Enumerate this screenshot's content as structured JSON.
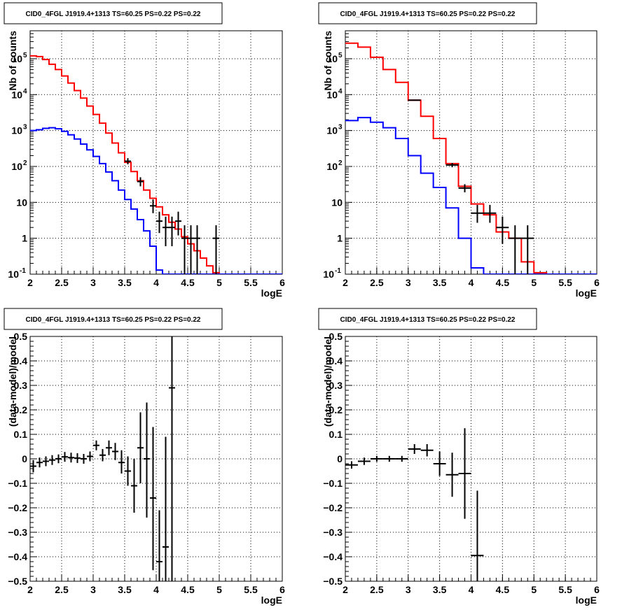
{
  "chart_data": [
    {
      "type": "line",
      "title": "CID0_4FGL J1919.4+1313 TS=60.25 PS=0.22 PS=0.22",
      "xlabel": "logE",
      "ylabel": "Nb of counts",
      "log_y": true,
      "xlim": [
        2,
        6
      ],
      "ylim": [
        0.1,
        600000
      ],
      "grid": true,
      "x_ticks": [
        "2",
        "2.5",
        "3",
        "3.5",
        "4",
        "4.5",
        "5",
        "5.5",
        "6"
      ],
      "y_ticks": [
        {
          "value": 0.1,
          "base": "10",
          "exp": "-1"
        },
        {
          "value": 1,
          "base": "1",
          "exp": ""
        },
        {
          "value": 10,
          "base": "10",
          "exp": ""
        },
        {
          "value": 100,
          "base": "10",
          "exp": "2"
        },
        {
          "value": 1000,
          "base": "10",
          "exp": "3"
        },
        {
          "value": 10000,
          "base": "10",
          "exp": "4"
        },
        {
          "value": 100000,
          "base": "10",
          "exp": "5"
        }
      ],
      "bin_edges": [
        2.0,
        2.1,
        2.2,
        2.3,
        2.4,
        2.5,
        2.6,
        2.7,
        2.8,
        2.9,
        3.0,
        3.1,
        3.2,
        3.3,
        3.4,
        3.5,
        3.6,
        3.7,
        3.8,
        3.9,
        4.0,
        4.1,
        4.2,
        4.3,
        4.4,
        4.5,
        4.6,
        4.7,
        4.8,
        4.9,
        5.0,
        5.1,
        5.2,
        5.3,
        5.4,
        5.5,
        5.6,
        5.7,
        5.8,
        5.9,
        6.0
      ],
      "series": [
        {
          "color": "#ff0000",
          "style": "step",
          "values": [
            120000,
            115000,
            95000,
            70000,
            50000,
            33000,
            21000,
            13000,
            8000,
            4800,
            2800,
            1600,
            850,
            450,
            240,
            130,
            72,
            40,
            22,
            13,
            7.5,
            4.5,
            2.8,
            1.8,
            1.1,
            0.7,
            0.45,
            0.28,
            0.17,
            0.11,
            0.1,
            0.1,
            0.1,
            0.1,
            0.1,
            0.1,
            0.1,
            0.1,
            0.1,
            0.1
          ]
        },
        {
          "color": "#0000ff",
          "style": "step",
          "values": [
            1000,
            1050,
            1150,
            1200,
            1120,
            950,
            760,
            580,
            420,
            290,
            190,
            120,
            70,
            40,
            22,
            12,
            6.5,
            3.3,
            1.6,
            0.6,
            0.13,
            0.1,
            0.1,
            0.1,
            0.1,
            0.1,
            0.1,
            0.1,
            0.1,
            0.1,
            0.1,
            0.1,
            0.1,
            0.1,
            0.1,
            0.1,
            0.1,
            0.1,
            0.1,
            0.1
          ]
        },
        {
          "color": "#000000",
          "style": "errorbar",
          "points": [
            {
              "x": 3.55,
              "y": 140,
              "lo": 115,
              "hi": 170
            },
            {
              "x": 3.75,
              "y": 38,
              "lo": 28,
              "hi": 50
            },
            {
              "x": 3.95,
              "y": 8,
              "lo": 5,
              "hi": 12
            },
            {
              "x": 4.05,
              "y": 3,
              "lo": 1.4,
              "hi": 5.5
            },
            {
              "x": 4.15,
              "y": 2,
              "lo": 0.6,
              "hi": 4
            },
            {
              "x": 4.25,
              "y": 2,
              "lo": 0.6,
              "hi": 4
            },
            {
              "x": 4.35,
              "y": 3,
              "lo": 1.2,
              "hi": 5.5
            },
            {
              "x": 4.45,
              "y": 1,
              "lo": 0.1,
              "hi": 2.3
            },
            {
              "x": 4.55,
              "y": 1,
              "lo": 0.1,
              "hi": 2.3
            },
            {
              "x": 4.65,
              "y": 1,
              "lo": 0.1,
              "hi": 2.3
            },
            {
              "x": 4.95,
              "y": 1,
              "lo": 0.1,
              "hi": 2.3
            }
          ]
        }
      ]
    },
    {
      "type": "line",
      "title": "CID0_4FGL J1919.4+1313 TS=60.25 PS=0.22 PS=0.22",
      "xlabel": "logE",
      "ylabel": "Nb of counts",
      "log_y": true,
      "xlim": [
        2,
        6
      ],
      "ylim": [
        0.1,
        600000
      ],
      "grid": true,
      "x_ticks": [
        "2",
        "2.5",
        "3",
        "3.5",
        "4",
        "4.5",
        "5",
        "5.5",
        "6"
      ],
      "y_ticks": [
        {
          "value": 0.1,
          "base": "10",
          "exp": "-1"
        },
        {
          "value": 1,
          "base": "1",
          "exp": ""
        },
        {
          "value": 10,
          "base": "10",
          "exp": ""
        },
        {
          "value": 100,
          "base": "10",
          "exp": "2"
        },
        {
          "value": 1000,
          "base": "10",
          "exp": "3"
        },
        {
          "value": 10000,
          "base": "10",
          "exp": "4"
        },
        {
          "value": 100000,
          "base": "10",
          "exp": "5"
        }
      ],
      "bin_edges": [
        2.0,
        2.2,
        2.4,
        2.6,
        2.8,
        3.0,
        3.2,
        3.4,
        3.6,
        3.8,
        4.0,
        4.2,
        4.4,
        4.6,
        4.8,
        5.0,
        5.2,
        5.4,
        5.6,
        5.8,
        6.0
      ],
      "series": [
        {
          "color": "#ff0000",
          "style": "step",
          "values": [
            270000,
            210000,
            110000,
            50000,
            22000,
            7000,
            2500,
            600,
            120,
            28,
            9,
            4.5,
            1.5,
            1,
            0.22,
            0.11,
            0.1,
            0.1,
            0.1,
            0.1
          ]
        },
        {
          "color": "#0000ff",
          "style": "step",
          "values": [
            1900,
            2300,
            1700,
            1200,
            600,
            200,
            65,
            26,
            7,
            1,
            0.15,
            0.1,
            0.1,
            0.1,
            0.1,
            0.1,
            0.1,
            0.1,
            0.1,
            0.1
          ]
        },
        {
          "color": "#000000",
          "style": "errorbar",
          "points": [
            {
              "x": 3.1,
              "y": 7000,
              "lo": 6800,
              "hi": 7300
            },
            {
              "x": 3.7,
              "y": 110,
              "lo": 95,
              "hi": 125
            },
            {
              "x": 3.9,
              "y": 25,
              "lo": 19,
              "hi": 32
            },
            {
              "x": 4.1,
              "y": 5,
              "lo": 2.7,
              "hi": 8.5
            },
            {
              "x": 4.3,
              "y": 5,
              "lo": 2.7,
              "hi": 8.5
            },
            {
              "x": 4.5,
              "y": 2,
              "lo": 0.7,
              "hi": 4
            },
            {
              "x": 4.7,
              "y": 1,
              "lo": 0.1,
              "hi": 2.3
            },
            {
              "x": 4.9,
              "y": 1,
              "lo": 0.1,
              "hi": 2.3
            }
          ]
        }
      ]
    },
    {
      "type": "scatter",
      "title": "CID0_4FGL J1919.4+1313 TS=60.25 PS=0.22 PS=0.22",
      "xlabel": "logE",
      "ylabel": "(data-model)/model",
      "log_y": false,
      "xlim": [
        2,
        6
      ],
      "ylim": [
        -0.5,
        0.5
      ],
      "grid": true,
      "x_ticks": [
        "2",
        "2.5",
        "3",
        "3.5",
        "4",
        "4.5",
        "5",
        "5.5",
        "6"
      ],
      "y_ticks": [
        {
          "value": -0.5,
          "label": "−0.5"
        },
        {
          "value": -0.4,
          "label": "−0.4"
        },
        {
          "value": -0.3,
          "label": "−0.3"
        },
        {
          "value": -0.2,
          "label": "−0.2"
        },
        {
          "value": -0.1,
          "label": "−0.1"
        },
        {
          "value": 0,
          "label": "0"
        },
        {
          "value": 0.1,
          "label": "0.1"
        },
        {
          "value": 0.2,
          "label": "0.2"
        },
        {
          "value": 0.3,
          "label": "0.3"
        },
        {
          "value": 0.4,
          "label": "0.4"
        },
        {
          "value": 0.5,
          "label": "0.5"
        }
      ],
      "bin_width": 0.1,
      "series": [
        {
          "color": "#000000",
          "style": "errorbar",
          "points": [
            {
              "x": 2.05,
              "y": -0.03,
              "lo": -0.055,
              "hi": -0.005
            },
            {
              "x": 2.15,
              "y": -0.015,
              "lo": -0.035,
              "hi": 0.005
            },
            {
              "x": 2.25,
              "y": -0.01,
              "lo": -0.03,
              "hi": 0.01
            },
            {
              "x": 2.35,
              "y": -0.005,
              "lo": -0.025,
              "hi": 0.015
            },
            {
              "x": 2.45,
              "y": 0.0,
              "lo": -0.018,
              "hi": 0.018
            },
            {
              "x": 2.55,
              "y": 0.008,
              "lo": -0.012,
              "hi": 0.028
            },
            {
              "x": 2.65,
              "y": 0.005,
              "lo": -0.015,
              "hi": 0.025
            },
            {
              "x": 2.75,
              "y": 0.003,
              "lo": -0.017,
              "hi": 0.023
            },
            {
              "x": 2.85,
              "y": 0.0,
              "lo": -0.02,
              "hi": 0.02
            },
            {
              "x": 2.95,
              "y": 0.01,
              "lo": -0.01,
              "hi": 0.03
            },
            {
              "x": 3.05,
              "y": 0.055,
              "lo": 0.035,
              "hi": 0.075
            },
            {
              "x": 3.15,
              "y": 0.015,
              "lo": -0.01,
              "hi": 0.04
            },
            {
              "x": 3.25,
              "y": 0.045,
              "lo": 0.015,
              "hi": 0.075
            },
            {
              "x": 3.35,
              "y": 0.03,
              "lo": -0.005,
              "hi": 0.065
            },
            {
              "x": 3.45,
              "y": -0.015,
              "lo": -0.06,
              "hi": 0.035
            },
            {
              "x": 3.55,
              "y": -0.05,
              "lo": -0.11,
              "hi": 0.01
            },
            {
              "x": 3.65,
              "y": -0.11,
              "lo": -0.22,
              "hi": 0.0
            },
            {
              "x": 3.75,
              "y": 0.045,
              "lo": -0.1,
              "hi": 0.19
            },
            {
              "x": 3.85,
              "y": 0.0,
              "lo": -0.24,
              "hi": 0.23
            },
            {
              "x": 3.95,
              "y": -0.16,
              "lo": -0.455,
              "hi": 0.13
            },
            {
              "x": 4.05,
              "y": -0.42,
              "lo": -0.5,
              "hi": -0.21
            },
            {
              "x": 4.15,
              "y": -0.36,
              "lo": -0.5,
              "hi": 0.09
            },
            {
              "x": 4.25,
              "y": 0.29,
              "lo": -0.5,
              "hi": 0.5
            }
          ]
        }
      ]
    },
    {
      "type": "scatter",
      "title": "CID0_4FGL J1919.4+1313 TS=60.25 PS=0.22 PS=0.22",
      "xlabel": "logE",
      "ylabel": "(data-model)/model",
      "log_y": false,
      "xlim": [
        2,
        6
      ],
      "ylim": [
        -0.5,
        0.5
      ],
      "grid": true,
      "x_ticks": [
        "2",
        "2.5",
        "3",
        "3.5",
        "4",
        "4.5",
        "5",
        "5.5",
        "6"
      ],
      "y_ticks": [
        {
          "value": -0.5,
          "label": "−0.5"
        },
        {
          "value": -0.4,
          "label": "−0.4"
        },
        {
          "value": -0.3,
          "label": "−0.3"
        },
        {
          "value": -0.2,
          "label": "−0.2"
        },
        {
          "value": -0.1,
          "label": "−0.1"
        },
        {
          "value": 0,
          "label": "0"
        },
        {
          "value": 0.1,
          "label": "0.1"
        },
        {
          "value": 0.2,
          "label": "0.2"
        },
        {
          "value": 0.3,
          "label": "0.3"
        },
        {
          "value": 0.4,
          "label": "0.4"
        },
        {
          "value": 0.5,
          "label": "0.5"
        }
      ],
      "bin_width": 0.2,
      "series": [
        {
          "color": "#000000",
          "style": "errorbar",
          "points": [
            {
              "x": 2.1,
              "y": -0.025,
              "lo": -0.04,
              "hi": -0.01
            },
            {
              "x": 2.3,
              "y": -0.01,
              "lo": -0.025,
              "hi": 0.005
            },
            {
              "x": 2.5,
              "y": 0.0,
              "lo": -0.012,
              "hi": 0.012
            },
            {
              "x": 2.7,
              "y": 0.0,
              "lo": -0.012,
              "hi": 0.012
            },
            {
              "x": 2.9,
              "y": 0.0,
              "lo": -0.012,
              "hi": 0.012
            },
            {
              "x": 3.1,
              "y": 0.04,
              "lo": 0.02,
              "hi": 0.06
            },
            {
              "x": 3.3,
              "y": 0.035,
              "lo": 0.01,
              "hi": 0.06
            },
            {
              "x": 3.5,
              "y": -0.02,
              "lo": -0.07,
              "hi": 0.03
            },
            {
              "x": 3.7,
              "y": -0.065,
              "lo": -0.155,
              "hi": 0.025
            },
            {
              "x": 3.9,
              "y": -0.06,
              "lo": -0.245,
              "hi": 0.125
            },
            {
              "x": 4.1,
              "y": -0.395,
              "lo": -0.5,
              "hi": -0.13
            }
          ]
        }
      ]
    }
  ]
}
